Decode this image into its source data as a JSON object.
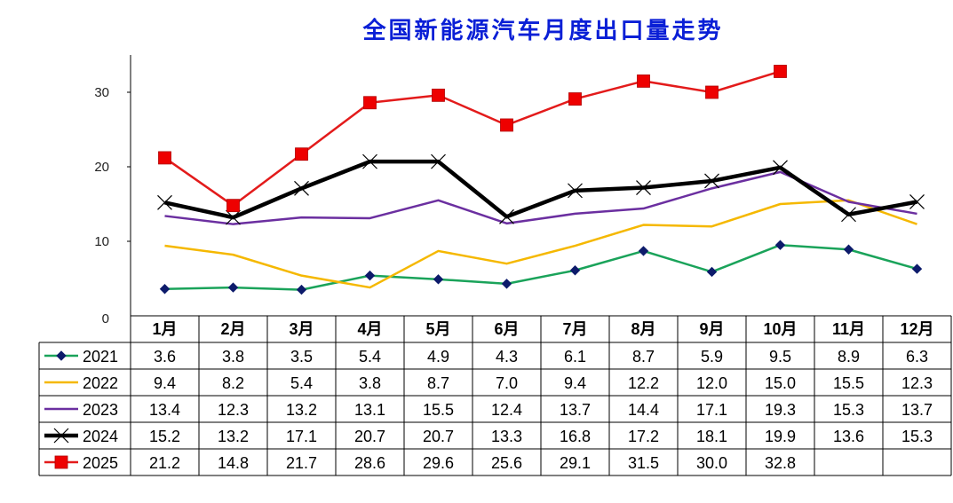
{
  "chart_data": {
    "type": "line",
    "title": "全国新能源汽车月度出口量走势",
    "categories": [
      "1月",
      "2月",
      "3月",
      "4月",
      "5月",
      "6月",
      "7月",
      "8月",
      "9月",
      "10月",
      "11月",
      "12月"
    ],
    "ylim": [
      0,
      35
    ],
    "yticks": [
      "0",
      "10",
      "20",
      "30"
    ],
    "grid": false,
    "legend_position": "data-table-left",
    "series": [
      {
        "name": "2021",
        "color": "#1aa35a",
        "marker": "diamond",
        "marker_color": "#0d1b6b",
        "values": [
          3.6,
          3.8,
          3.5,
          5.4,
          4.9,
          4.3,
          6.1,
          8.7,
          5.9,
          9.5,
          8.9,
          6.3
        ],
        "labels": [
          "3.6",
          "3.8",
          "3.5",
          "5.4",
          "4.9",
          "4.3",
          "6.1",
          "8.7",
          "5.9",
          "9.5",
          "8.9",
          "6.3"
        ]
      },
      {
        "name": "2022",
        "color": "#f5b800",
        "marker": "none",
        "values": [
          9.4,
          8.2,
          5.4,
          3.8,
          8.7,
          7.0,
          9.4,
          12.2,
          12.0,
          15.0,
          15.5,
          12.3
        ],
        "labels": [
          "9.4",
          "8.2",
          "5.4",
          "3.8",
          "8.7",
          "7.0",
          "9.4",
          "12.2",
          "12.0",
          "15.0",
          "15.5",
          "12.3"
        ]
      },
      {
        "name": "2023",
        "color": "#6b2fa0",
        "marker": "none",
        "values": [
          13.4,
          12.3,
          13.2,
          13.1,
          15.5,
          12.4,
          13.7,
          14.4,
          17.1,
          19.3,
          15.3,
          13.7
        ],
        "labels": [
          "13.4",
          "12.3",
          "13.2",
          "13.1",
          "15.5",
          "12.4",
          "13.7",
          "14.4",
          "17.1",
          "19.3",
          "15.3",
          "13.7"
        ]
      },
      {
        "name": "2024",
        "color": "#000000",
        "marker": "x",
        "values": [
          15.2,
          13.2,
          17.1,
          20.7,
          20.7,
          13.3,
          16.8,
          17.2,
          18.1,
          19.9,
          13.6,
          15.3
        ],
        "labels": [
          "15.2",
          "13.2",
          "17.1",
          "20.7",
          "20.7",
          "13.3",
          "16.8",
          "17.2",
          "18.1",
          "19.9",
          "13.6",
          "15.3"
        ]
      },
      {
        "name": "2025",
        "color": "#e31b1b",
        "marker": "square",
        "marker_color": "#ee0000",
        "values": [
          21.2,
          14.8,
          21.7,
          28.6,
          29.6,
          25.6,
          29.1,
          31.5,
          30.0,
          32.8,
          null,
          null
        ],
        "labels": [
          "21.2",
          "14.8",
          "21.7",
          "28.6",
          "29.6",
          "25.6",
          "29.1",
          "31.5",
          "30.0",
          "32.8",
          "",
          ""
        ]
      }
    ]
  }
}
